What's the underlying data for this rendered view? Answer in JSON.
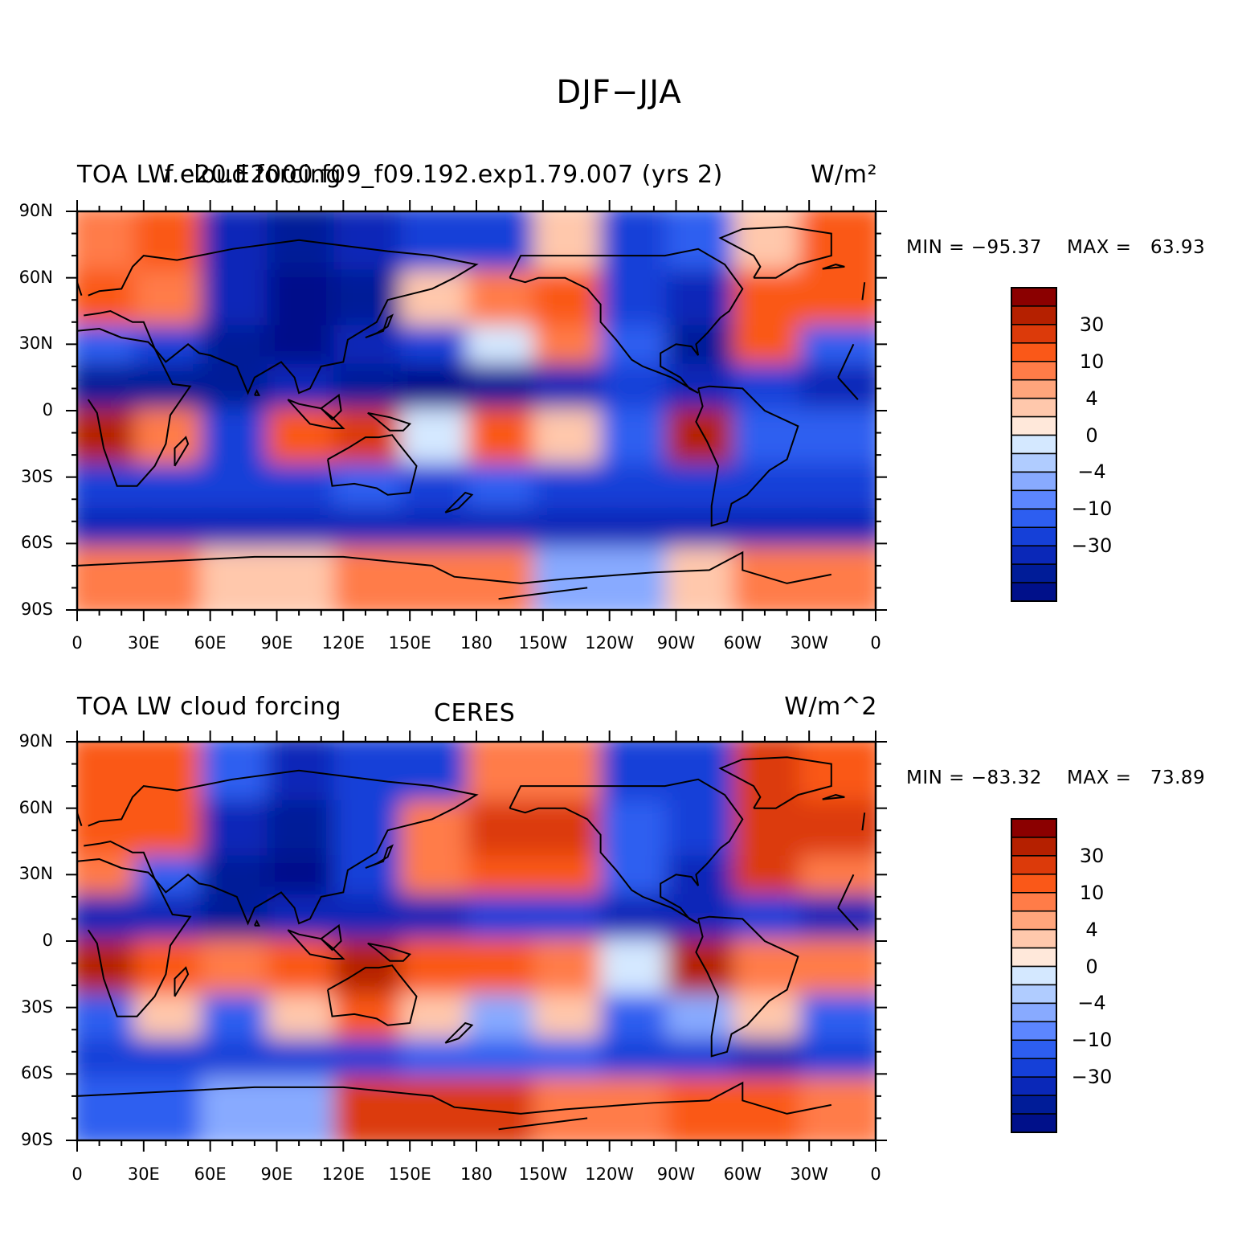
{
  "figure": {
    "title": "DJF−JJA"
  },
  "panels": [
    {
      "left_title": "TOA LW cloud forcing",
      "center_title": "f.e20.E2000.f09_f09.192.exp1.79.007 (yrs 2)",
      "units": "W/m²",
      "min_label": "MIN = −95.37",
      "max_label": "MAX =   63.93"
    },
    {
      "left_title": "TOA LW cloud forcing",
      "center_title": "CERES",
      "units": "W/m^2",
      "min_label": "MIN = −83.32",
      "max_label": "MAX =   73.89"
    }
  ],
  "axes": {
    "lat_labels": [
      "90N",
      "60N",
      "30N",
      "0",
      "30S",
      "60S",
      "90S"
    ],
    "lon_labels": [
      "0",
      "30E",
      "60E",
      "90E",
      "120E",
      "150E",
      "180",
      "150W",
      "120W",
      "90W",
      "60W",
      "30W",
      "0"
    ]
  },
  "colorbar": {
    "labels": [
      "30",
      "10",
      "4",
      "0",
      "−4",
      "−10",
      "−30"
    ],
    "colors": [
      "#8b0000",
      "#b52000",
      "#dc3a0a",
      "#fa5818",
      "#ff7c48",
      "#ffa57c",
      "#ffc8ac",
      "#ffe8da",
      "#d4e8ff",
      "#b0ccff",
      "#88aaff",
      "#5c86ff",
      "#2d5ef0",
      "#1540d8",
      "#0a28b8",
      "#001c98",
      "#00108a"
    ]
  },
  "chart_data": [
    {
      "type": "heatmap",
      "title": "TOA LW cloud forcing — f.e20.E2000.f09_f09.192.exp1.79.007 (yrs 2)",
      "units": "W/m²",
      "min": -95.37,
      "max": 63.93,
      "x_range": [
        0,
        360
      ],
      "y_range": [
        -90,
        90
      ],
      "lat": [
        75,
        45,
        25,
        10,
        -15,
        -40,
        -55,
        -75
      ],
      "lon": [
        15,
        45,
        75,
        105,
        135,
        165,
        195,
        225,
        255,
        285,
        315,
        345
      ],
      "values": [
        [
          15,
          20,
          -30,
          -40,
          -30,
          -20,
          -20,
          5,
          -20,
          -10,
          5,
          20
        ],
        [
          20,
          15,
          -30,
          -50,
          -40,
          5,
          10,
          20,
          -20,
          -30,
          20,
          20
        ],
        [
          -10,
          -20,
          -40,
          -50,
          -30,
          -20,
          0,
          10,
          -10,
          -40,
          20,
          -10
        ],
        [
          -40,
          -40,
          -40,
          -30,
          -40,
          -50,
          -40,
          -30,
          -20,
          -30,
          -20,
          -30
        ],
        [
          40,
          10,
          -20,
          20,
          30,
          0,
          20,
          5,
          -10,
          40,
          -10,
          -10
        ],
        [
          -20,
          -20,
          -20,
          -20,
          -10,
          -20,
          -10,
          -20,
          -20,
          -20,
          -20,
          -20
        ],
        [
          -30,
          -30,
          -30,
          -30,
          -30,
          -30,
          -30,
          -30,
          -30,
          -30,
          -30,
          -30
        ],
        [
          10,
          10,
          4,
          4,
          10,
          10,
          10,
          -4,
          -4,
          4,
          10,
          10
        ]
      ]
    },
    {
      "type": "heatmap",
      "title": "TOA LW cloud forcing — CERES",
      "units": "W/m^2",
      "min": -83.32,
      "max": 73.89,
      "x_range": [
        0,
        360
      ],
      "y_range": [
        -90,
        90
      ],
      "lat": [
        75,
        45,
        25,
        10,
        -15,
        -40,
        -55,
        -75
      ],
      "lon": [
        15,
        45,
        75,
        105,
        135,
        165,
        195,
        225,
        255,
        285,
        315,
        345
      ],
      "values": [
        [
          20,
          20,
          -10,
          -30,
          -20,
          -20,
          10,
          10,
          -20,
          -20,
          30,
          20
        ],
        [
          20,
          20,
          -30,
          -40,
          -20,
          10,
          30,
          30,
          -10,
          -20,
          30,
          30
        ],
        [
          10,
          -10,
          -40,
          -50,
          -20,
          10,
          20,
          20,
          -10,
          -30,
          30,
          10
        ],
        [
          -30,
          -30,
          -40,
          -30,
          -30,
          -30,
          -20,
          -20,
          -30,
          -30,
          -20,
          -30
        ],
        [
          40,
          20,
          10,
          20,
          40,
          20,
          20,
          10,
          0,
          40,
          10,
          10
        ],
        [
          -10,
          4,
          -10,
          4,
          20,
          4,
          -4,
          4,
          -10,
          -4,
          4,
          -10
        ],
        [
          -20,
          -20,
          -20,
          -20,
          -20,
          -10,
          -10,
          -10,
          -20,
          -20,
          -30,
          -20
        ],
        [
          -10,
          -10,
          -4,
          -4,
          30,
          30,
          30,
          10,
          10,
          20,
          20,
          10
        ]
      ]
    }
  ]
}
